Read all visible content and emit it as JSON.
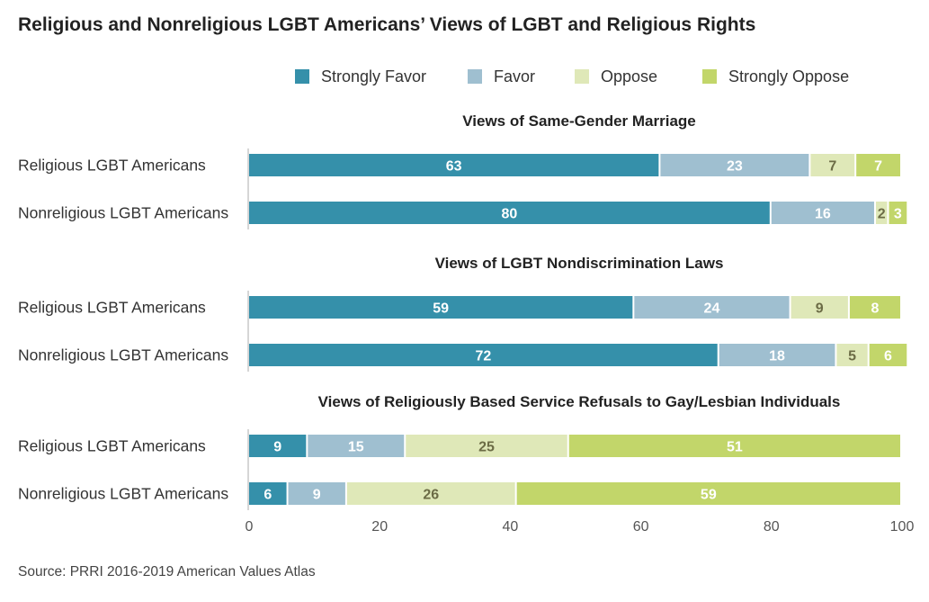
{
  "title": "Religious and Nonreligious LGBT Americans’ Views of LGBT and Religious Rights",
  "source": "Source: PRRI 2016-2019 American Values Atlas",
  "legend": [
    {
      "label": "Strongly Favor",
      "color": "#3590aa"
    },
    {
      "label": "Favor",
      "color": "#9fbfd0"
    },
    {
      "label": "Oppose",
      "color": "#dfe8b8"
    },
    {
      "label": "Strongly Oppose",
      "color": "#c2d66a"
    }
  ],
  "label_colors": [
    "#ffffff",
    "#ffffff",
    "#6b6b45",
    "#ffffff"
  ],
  "chart_data": {
    "type": "bar",
    "orientation": "horizontal",
    "stacked": true,
    "xlim": [
      0,
      100
    ],
    "xticks": [
      0,
      20,
      40,
      60,
      80,
      100
    ],
    "series_names": [
      "Strongly Favor",
      "Favor",
      "Oppose",
      "Strongly Oppose"
    ],
    "panels": [
      {
        "title": "Views of Same-Gender Marriage",
        "rows": [
          {
            "category": "Religious LGBT Americans",
            "values": [
              63,
              23,
              7,
              7
            ]
          },
          {
            "category": "Nonreligious LGBT Americans",
            "values": [
              80,
              16,
              2,
              3
            ]
          }
        ]
      },
      {
        "title": "Views of LGBT Nondiscrimination Laws",
        "rows": [
          {
            "category": "Religious LGBT Americans",
            "values": [
              59,
              24,
              9,
              8
            ]
          },
          {
            "category": "Nonreligious LGBT Americans",
            "values": [
              72,
              18,
              5,
              6
            ]
          }
        ]
      },
      {
        "title": "Views of Religiously Based Service Refusals to Gay/Lesbian Individuals",
        "rows": [
          {
            "category": "Religious LGBT Americans",
            "values": [
              9,
              15,
              25,
              51
            ]
          },
          {
            "category": "Nonreligious LGBT Americans",
            "values": [
              6,
              9,
              26,
              59
            ]
          }
        ]
      }
    ]
  }
}
